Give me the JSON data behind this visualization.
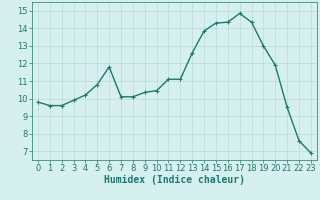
{
  "x": [
    0,
    1,
    2,
    3,
    4,
    5,
    6,
    7,
    8,
    9,
    10,
    11,
    12,
    13,
    14,
    15,
    16,
    17,
    18,
    19,
    20,
    21,
    22,
    23
  ],
  "y": [
    9.8,
    9.6,
    9.6,
    9.9,
    10.2,
    10.8,
    11.8,
    10.1,
    10.1,
    10.35,
    10.45,
    11.1,
    11.1,
    12.6,
    13.85,
    14.3,
    14.35,
    14.85,
    14.35,
    13.0,
    11.9,
    9.5,
    7.6,
    6.9
  ],
  "line_color": "#1a7a6e",
  "marker": "+",
  "marker_size": 3,
  "bg_color": "#d6f0ef",
  "grid_color": "#b8dbd8",
  "xlabel": "Humidex (Indice chaleur)",
  "xlim": [
    -0.5,
    23.5
  ],
  "ylim": [
    6.5,
    15.5
  ],
  "yticks": [
    7,
    8,
    9,
    10,
    11,
    12,
    13,
    14,
    15
  ],
  "xticks": [
    0,
    1,
    2,
    3,
    4,
    5,
    6,
    7,
    8,
    9,
    10,
    11,
    12,
    13,
    14,
    15,
    16,
    17,
    18,
    19,
    20,
    21,
    22,
    23
  ],
  "tick_fontsize": 6,
  "xlabel_fontsize": 7,
  "line_width": 1.0
}
